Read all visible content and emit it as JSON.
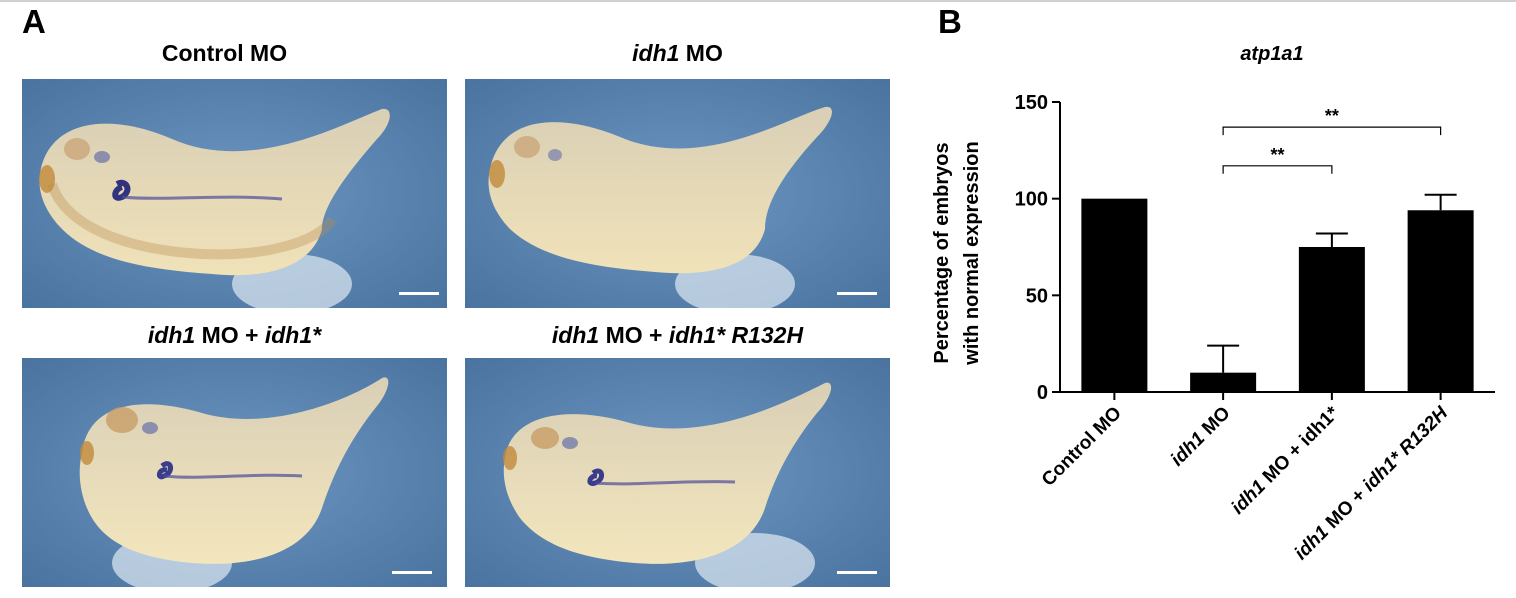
{
  "panels": {
    "a_letter": "A",
    "b_letter": "B"
  },
  "images": [
    {
      "label_pre": "",
      "label_i1": "",
      "label_mid": "Control MO",
      "label_i2": ""
    },
    {
      "label_pre": "",
      "label_i1": "idh1",
      "label_mid": " MO",
      "label_i2": ""
    },
    {
      "label_pre": "",
      "label_i1": "idh1",
      "label_mid": " MO + ",
      "label_i2": "idh1*"
    },
    {
      "label_pre": "",
      "label_i1": "idh1",
      "label_mid": " MO + ",
      "label_i2": "idh1* R132H"
    }
  ],
  "colors": {
    "background_blue": "#5b86b3",
    "embryo": "#ead9b0",
    "stain": "#3b3c8c",
    "scale_bar": "#ffffff"
  },
  "chart_data": {
    "type": "bar",
    "title": "atp1a1",
    "ylabel_line1": "Percentage of embryos",
    "ylabel_line2": "with normal expression",
    "ylim": [
      0,
      150
    ],
    "yticks": [
      0,
      50,
      100,
      150
    ],
    "categories": [
      {
        "italic": "",
        "rest": "Control MO"
      },
      {
        "italic": "idh1",
        "rest": " MO"
      },
      {
        "italic": "idh1",
        "rest": " MO + idh1*"
      },
      {
        "italic": "idh1",
        "rest": " MO + ",
        "italic2": "idh1* R132H"
      }
    ],
    "values": [
      100,
      10,
      75,
      94
    ],
    "errors": [
      0,
      14,
      7,
      8
    ],
    "bar_color": "#000000",
    "annotations": [
      {
        "from": 1,
        "to": 2,
        "text": "**",
        "y": 117
      },
      {
        "from": 1,
        "to": 3,
        "text": "**",
        "y": 137
      }
    ]
  }
}
